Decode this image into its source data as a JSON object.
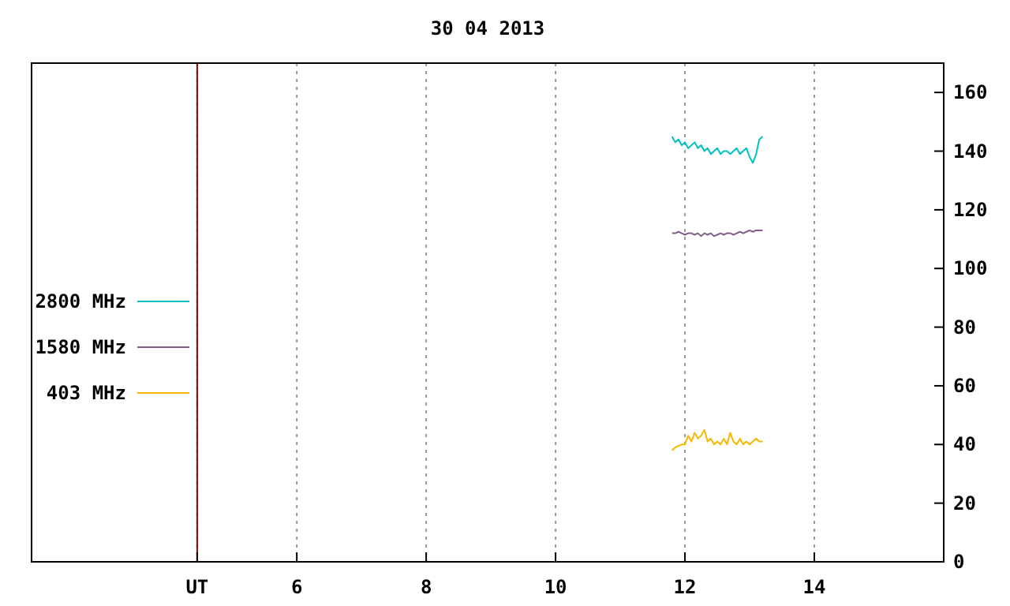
{
  "chart_data": {
    "type": "line",
    "title": "30 04 2013",
    "x": [
      11.8,
      11.85,
      11.9,
      11.95,
      12.0,
      12.05,
      12.1,
      12.15,
      12.2,
      12.25,
      12.3,
      12.35,
      12.4,
      12.45,
      12.5,
      12.55,
      12.6,
      12.65,
      12.7,
      12.75,
      12.8,
      12.85,
      12.9,
      12.95,
      13.0,
      13.05,
      13.1,
      13.15,
      13.2
    ],
    "series": [
      {
        "name": "2800 MHz",
        "color": "#00c0c0",
        "values": [
          145,
          143,
          144,
          142,
          143,
          141,
          142,
          143,
          141,
          142,
          140,
          141,
          139,
          140,
          141,
          139,
          140,
          140,
          139,
          140,
          141,
          139,
          140,
          141,
          138,
          136,
          139,
          144,
          145
        ]
      },
      {
        "name": "1580 MHz",
        "color": "#7f5f86",
        "values": [
          112,
          112,
          112.5,
          112,
          111.5,
          112,
          112,
          111.5,
          112,
          111,
          112,
          111.5,
          112,
          111,
          111.5,
          112,
          111.5,
          112,
          112,
          111.5,
          112,
          112.5,
          112,
          112.5,
          113,
          112.5,
          113,
          113,
          113
        ]
      },
      {
        "name": "403 MHz",
        "color": "#f8b800",
        "values": [
          38,
          39,
          39.5,
          40,
          40,
          43,
          41,
          44,
          42,
          43,
          45,
          41,
          42,
          40,
          41,
          40,
          42,
          40,
          44,
          41,
          40,
          42,
          40,
          41,
          40,
          41,
          42,
          41,
          41
        ]
      }
    ],
    "xlim": [
      1.9,
      16
    ],
    "xticks": [
      {
        "value": 4.46,
        "label": "UT"
      },
      6,
      8,
      10,
      12,
      14
    ],
    "ylim": [
      0,
      170
    ],
    "yticks": [
      0,
      20,
      40,
      60,
      80,
      100,
      120,
      140,
      160
    ],
    "grid": "x",
    "ref_lines": [
      {
        "axis": "x",
        "value": 4.46,
        "color": "#8b0000"
      }
    ],
    "legend": "left"
  }
}
